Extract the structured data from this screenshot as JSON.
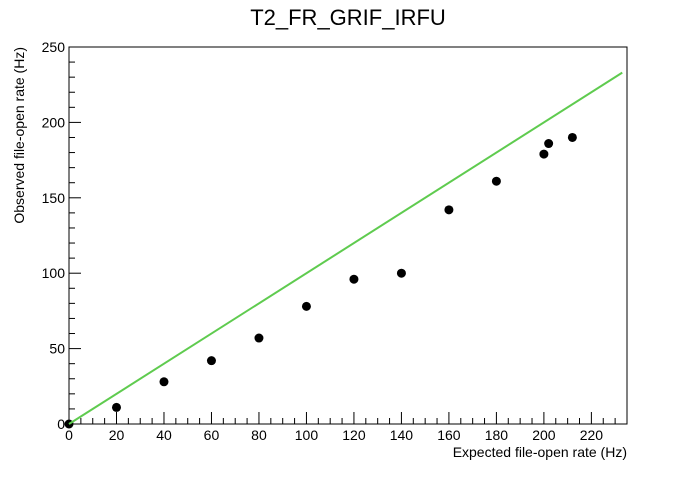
{
  "chart_data": {
    "type": "scatter",
    "title": "T2_FR_GRIF_IRFU",
    "xlabel": "Expected file-open rate (Hz)",
    "ylabel": "Observed file-open rate (Hz)",
    "xlim": [
      0,
      235
    ],
    "ylim": [
      0,
      250
    ],
    "x_ticks": [
      0,
      20,
      40,
      60,
      80,
      100,
      120,
      140,
      160,
      180,
      200,
      220
    ],
    "y_ticks": [
      0,
      50,
      100,
      150,
      200,
      250
    ],
    "grid": false,
    "legend": "none",
    "series": [
      {
        "type": "scatter",
        "color": "#000000",
        "x": [
          0,
          20,
          40,
          60,
          80,
          100,
          120,
          140,
          160,
          180,
          200,
          202,
          212
        ],
        "y": [
          0,
          11,
          28,
          42,
          57,
          78,
          96,
          100,
          142,
          161,
          179,
          186,
          190
        ]
      },
      {
        "type": "line",
        "color": "#5fcb4f",
        "x": [
          0,
          233
        ],
        "y": [
          0,
          233
        ]
      }
    ]
  }
}
